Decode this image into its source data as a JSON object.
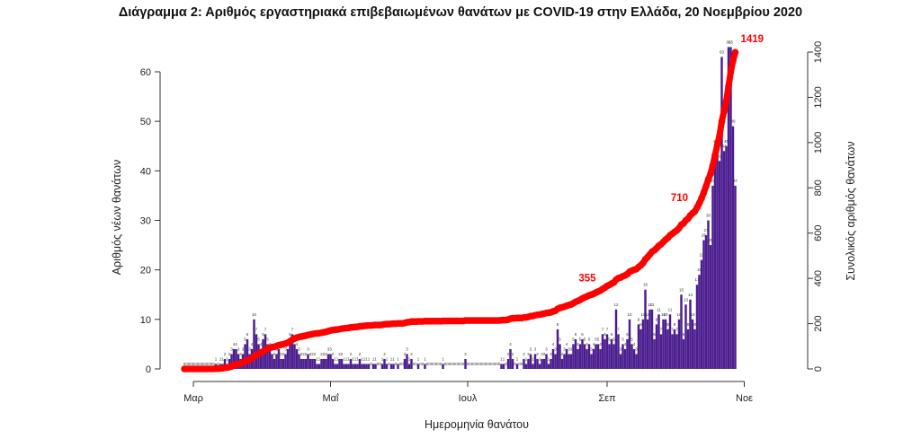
{
  "chart_data": {
    "type": "bar",
    "title": "Διάγραμμα 2: Αριθμός εργαστηριακά επιβεβαιωμένων θανάτων με COVID-19 στην Ελλάδα, 20 Νοεμβρίου 2020",
    "xlabel": "Ημερομηνία θανάτου",
    "ylabel": "Αριθμός νέων θανάτων",
    "y2label": "Συνολικός αριθμός θανάτων",
    "x_start": "2020-02-26",
    "x_end": "2020-11-20",
    "x_ticks": [
      {
        "date": "2020-03-01",
        "label": "Μαρ"
      },
      {
        "date": "2020-05-01",
        "label": "Μαΐ"
      },
      {
        "date": "2020-07-01",
        "label": "Ιουλ"
      },
      {
        "date": "2020-09-01",
        "label": "Σεπ"
      },
      {
        "date": "2020-11-01",
        "label": "Νοε"
      }
    ],
    "ylim": [
      0,
      65
    ],
    "y_ticks": [
      0,
      10,
      20,
      30,
      40,
      50,
      60
    ],
    "y2lim": [
      0,
      1430
    ],
    "y2_ticks": [
      0,
      200,
      400,
      600,
      800,
      1000,
      1200,
      1400
    ],
    "series": [
      {
        "name": "",
        "kind": "bar",
        "color": "#4b1d8f",
        "values": [
          0,
          0,
          0,
          0,
          0,
          0,
          0,
          0,
          0,
          0,
          0,
          0,
          0,
          0,
          1,
          0,
          1,
          1,
          2,
          1,
          2,
          3,
          4,
          4,
          3,
          2,
          3,
          5,
          6,
          3,
          4,
          10,
          7,
          5,
          4,
          6,
          7,
          5,
          4,
          3,
          2,
          3,
          4,
          2,
          2,
          3,
          4,
          6,
          7,
          5,
          4,
          3,
          2,
          2,
          2,
          3,
          2,
          2,
          2,
          1,
          1,
          2,
          2,
          2,
          3,
          3,
          2,
          1,
          1,
          2,
          2,
          1,
          1,
          1,
          2,
          1,
          1,
          1,
          2,
          1,
          1,
          1,
          1,
          0,
          1,
          1,
          0,
          0,
          1,
          2,
          1,
          0,
          1,
          1,
          0,
          1,
          0,
          0,
          2,
          3,
          1,
          2,
          0,
          0,
          1,
          0,
          0,
          1,
          0,
          0,
          0,
          0,
          0,
          0,
          0,
          1,
          0,
          0,
          0,
          0,
          0,
          0,
          0,
          0,
          0,
          2,
          0,
          0,
          0,
          0,
          0,
          0,
          0,
          0,
          0,
          0,
          0,
          0,
          0,
          0,
          0,
          1,
          1,
          0,
          2,
          4,
          2,
          0,
          1,
          0,
          0,
          2,
          1,
          2,
          3,
          1,
          3,
          2,
          1,
          2,
          2,
          3,
          1,
          2,
          4,
          3,
          8,
          5,
          2,
          3,
          4,
          3,
          3,
          5,
          6,
          4,
          5,
          6,
          5,
          4,
          5,
          3,
          4,
          5,
          5,
          4,
          7,
          6,
          7,
          5,
          6,
          5,
          12,
          7,
          3,
          5,
          4,
          6,
          10,
          5,
          4,
          3,
          9,
          8,
          10,
          16,
          10,
          12,
          12,
          6,
          9,
          11,
          7,
          10,
          10,
          8,
          11,
          7,
          8,
          7,
          10,
          15,
          6,
          13,
          8,
          14,
          10,
          8,
          17,
          19,
          22,
          26,
          27,
          30,
          25,
          37,
          45,
          45,
          42,
          63,
          44,
          45,
          65,
          65,
          49,
          37
        ],
        "labels": [
          {
            "date": "2020-04-07",
            "text": "10"
          },
          {
            "date": "2020-11-02",
            "text": "63"
          },
          {
            "date": "2020-11-05",
            "text": "65"
          }
        ]
      },
      {
        "name": "",
        "kind": "cumulative",
        "axis": "right",
        "color": "#ff0000",
        "labels": [
          {
            "value": 355,
            "text": "355"
          },
          {
            "value": 710,
            "text": "710"
          },
          {
            "value": 1419,
            "text": "1419"
          }
        ]
      }
    ]
  }
}
